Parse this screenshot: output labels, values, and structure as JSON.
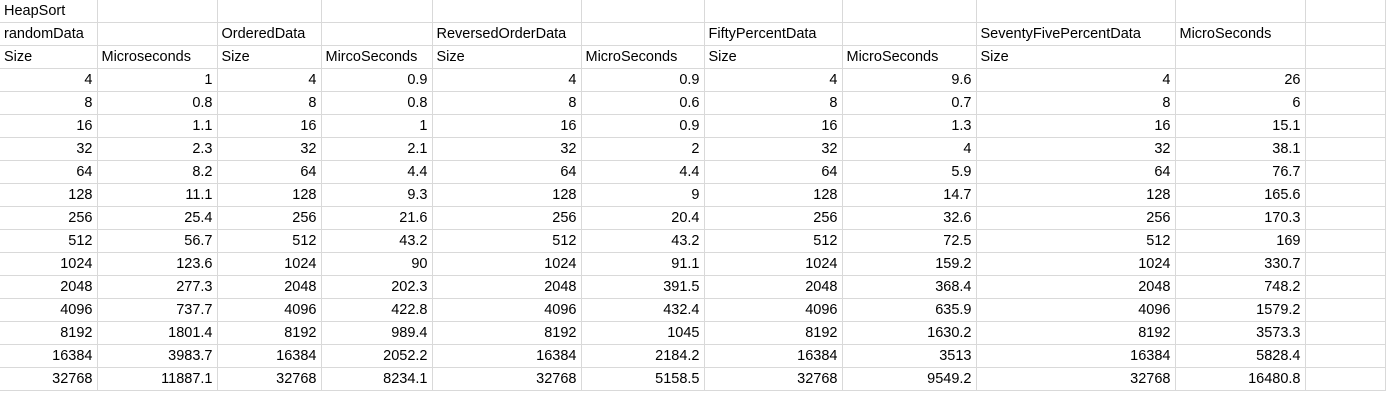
{
  "sheet": {
    "title_row": [
      "HeapSort",
      "",
      "",
      "",
      "",
      "",
      "",
      "",
      "",
      "",
      ""
    ],
    "label_row": [
      "randomData",
      "",
      "OrderedData",
      "",
      "ReversedOrderData",
      "",
      "FiftyPercentData",
      "",
      "SeventyFivePercentData",
      "MicroSeconds",
      ""
    ],
    "unit_row": [
      "Size",
      "Microseconds",
      "Size",
      "MircoSeconds",
      "Size",
      "MicroSeconds",
      "Size",
      "MicroSeconds",
      "Size",
      "",
      ""
    ],
    "data_rows": [
      [
        "4",
        "1",
        "4",
        "0.9",
        "4",
        "0.9",
        "4",
        "9.6",
        "4",
        "26",
        ""
      ],
      [
        "8",
        "0.8",
        "8",
        "0.8",
        "8",
        "0.6",
        "8",
        "0.7",
        "8",
        "6",
        ""
      ],
      [
        "16",
        "1.1",
        "16",
        "1",
        "16",
        "0.9",
        "16",
        "1.3",
        "16",
        "15.1",
        ""
      ],
      [
        "32",
        "2.3",
        "32",
        "2.1",
        "32",
        "2",
        "32",
        "4",
        "32",
        "38.1",
        ""
      ],
      [
        "64",
        "8.2",
        "64",
        "4.4",
        "64",
        "4.4",
        "64",
        "5.9",
        "64",
        "76.7",
        ""
      ],
      [
        "128",
        "11.1",
        "128",
        "9.3",
        "128",
        "9",
        "128",
        "14.7",
        "128",
        "165.6",
        ""
      ],
      [
        "256",
        "25.4",
        "256",
        "21.6",
        "256",
        "20.4",
        "256",
        "32.6",
        "256",
        "170.3",
        ""
      ],
      [
        "512",
        "56.7",
        "512",
        "43.2",
        "512",
        "43.2",
        "512",
        "72.5",
        "512",
        "169",
        ""
      ],
      [
        "1024",
        "123.6",
        "1024",
        "90",
        "1024",
        "91.1",
        "1024",
        "159.2",
        "1024",
        "330.7",
        ""
      ],
      [
        "2048",
        "277.3",
        "2048",
        "202.3",
        "2048",
        "391.5",
        "2048",
        "368.4",
        "2048",
        "748.2",
        ""
      ],
      [
        "4096",
        "737.7",
        "4096",
        "422.8",
        "4096",
        "432.4",
        "4096",
        "635.9",
        "4096",
        "1579.2",
        ""
      ],
      [
        "8192",
        "1801.4",
        "8192",
        "989.4",
        "8192",
        "1045",
        "8192",
        "1630.2",
        "8192",
        "3573.3",
        ""
      ],
      [
        "16384",
        "3983.7",
        "16384",
        "2052.2",
        "16384",
        "2184.2",
        "16384",
        "3513",
        "16384",
        "5828.4",
        ""
      ],
      [
        "32768",
        "11887.1",
        "32768",
        "8234.1",
        "32768",
        "5158.5",
        "32768",
        "9549.2",
        "32768",
        "16480.8",
        ""
      ]
    ]
  }
}
